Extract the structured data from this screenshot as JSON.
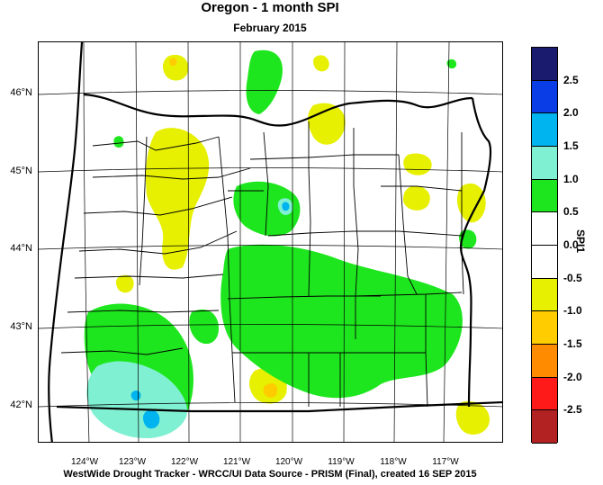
{
  "title": "Oregon - 1 month SPI",
  "subtitle": "February 2015",
  "footer": "WestWide Drought Tracker - WRCC/UI  Data Source - PRISM (Final), created 16 SEP 2015",
  "latitude_labels": [
    "46°N",
    "45°N",
    "44°N",
    "43°N",
    "42°N"
  ],
  "longitude_labels": [
    "124°W",
    "123°W",
    "122°W",
    "121°W",
    "120°W",
    "119°W",
    "118°W",
    "117°W"
  ],
  "colorbar": {
    "title": "SPI1",
    "labels": [
      "2.5",
      "2.0",
      "1.5",
      "1.0",
      "0.5",
      "0.0",
      "-0.5",
      "-1.0",
      "-1.5",
      "-2.0",
      "-2.5"
    ],
    "colors": [
      "#1a1a6e",
      "#0a3de6",
      "#00b4f0",
      "#80f0d2",
      "#1ee61e",
      "#ffffff",
      "#ffffff",
      "#e6f000",
      "#ffcc00",
      "#ff8c00",
      "#ff1a1a",
      "#b22222"
    ]
  },
  "colors": {
    "green": "#1ee61e",
    "yellow": "#e6f000",
    "aqua": "#80f0d2",
    "cyan": "#00b4f0",
    "orange": "#ffcc00"
  }
}
